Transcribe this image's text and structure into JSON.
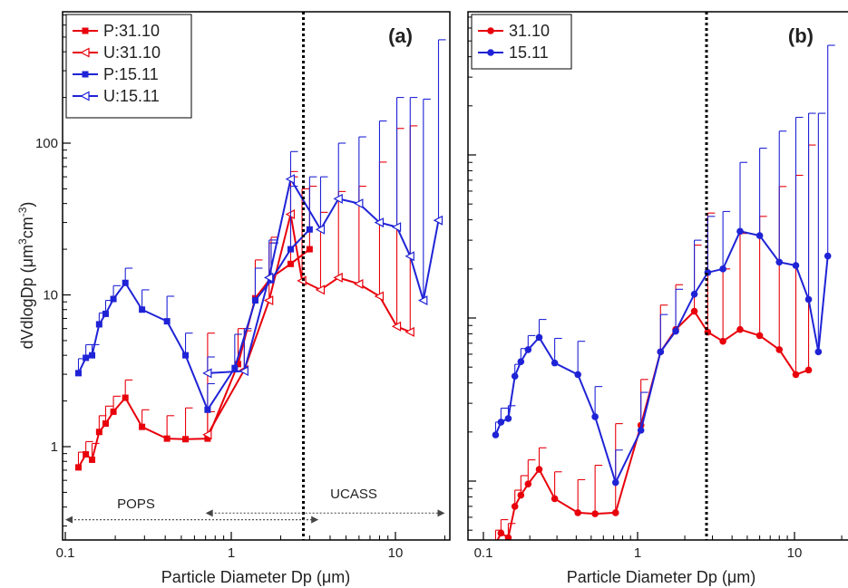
{
  "chart_data": [
    {
      "type": "line",
      "panel_label": "(a)",
      "xlabel": "Particle Diameter Dp (",
      "xlabel_unit": "μm",
      "xlabel_close": ")",
      "ylabel": "dVdlogDp (",
      "ylabel_unit": "μm",
      "ylabel_exp1": "3",
      "ylabel_cm": "cm",
      "ylabel_exp2": "-3",
      "ylabel_close": ")",
      "x_scale": "log",
      "y_scale": "log",
      "xlim": [
        0.1,
        20
      ],
      "ylim": [
        0.25,
        600
      ],
      "x_ticks": [
        {
          "value": 0.1,
          "label": "0.1"
        },
        {
          "value": 1,
          "label": "1"
        },
        {
          "value": 10,
          "label": "10"
        }
      ],
      "y_ticks": [
        {
          "value": 1,
          "label": "1"
        },
        {
          "value": 10,
          "label": "10"
        },
        {
          "value": 100,
          "label": "100"
        }
      ],
      "boundary_x": 2.75,
      "legend_position": "top-left",
      "annotations": [
        {
          "text": "POPS",
          "x": 0.28,
          "y": 0.38
        },
        {
          "text": "UCASS",
          "x": 5.2,
          "y": 0.42
        }
      ],
      "ranges": [
        {
          "from": 0.1,
          "to": 3.4,
          "y": 0.33
        },
        {
          "from": 0.7,
          "to": 20,
          "y": 0.365
        }
      ],
      "series": [
        {
          "name": "P:31.10",
          "color": "#e8000b",
          "marker": "square",
          "x": [
            0.12,
            0.133,
            0.145,
            0.16,
            0.175,
            0.195,
            0.23,
            0.29,
            0.41,
            0.53,
            0.72,
            1.1,
            1.4,
            1.75,
            2.3,
            3.0
          ],
          "y": [
            0.73,
            0.89,
            0.82,
            1.25,
            1.42,
            1.7,
            2.1,
            1.35,
            1.13,
            1.12,
            1.13,
            3.5,
            9.5,
            13,
            16,
            20
          ],
          "err": [
            0.92,
            1.08,
            1.05,
            1.6,
            1.85,
            2.15,
            2.75,
            1.75,
            1.6,
            1.8,
            5.6,
            6,
            17,
            24,
            65,
            52
          ]
        },
        {
          "name": "U:31.10",
          "color": "#e8000b",
          "marker": "tri-left",
          "x": [
            0.72,
            1.2,
            1.7,
            2.3,
            2.7,
            3.5,
            4.5,
            6.0,
            8.0,
            10.2,
            12.3
          ],
          "y": [
            1.2,
            3.2,
            9.2,
            34,
            12.4,
            10.8,
            13,
            11.8,
            9.8,
            6.2,
            5.7
          ],
          "err": [
            1.7,
            5.8,
            22,
            60,
            50,
            35,
            48,
            52,
            75,
            125,
            130
          ]
        },
        {
          "name": "P:15.11",
          "color": "#1f23d6",
          "marker": "square",
          "x": [
            0.12,
            0.133,
            0.145,
            0.16,
            0.175,
            0.195,
            0.23,
            0.29,
            0.41,
            0.53,
            0.72,
            1.05,
            1.4,
            1.75,
            2.3,
            3.0
          ],
          "y": [
            3.05,
            3.85,
            4.0,
            6.4,
            7.5,
            9.4,
            12,
            8.0,
            6.7,
            4.0,
            1.75,
            3.3,
            9.2,
            12.5,
            20,
            27
          ],
          "err": [
            3.8,
            4.7,
            4.7,
            7.6,
            9.2,
            11.5,
            15,
            10.8,
            9.8,
            5.6,
            2.6,
            5.5,
            15,
            22,
            52,
            60
          ]
        },
        {
          "name": "U:15.11",
          "color": "#1f23d6",
          "marker": "tri-left",
          "x": [
            0.72,
            1.2,
            1.7,
            2.3,
            3.5,
            4.5,
            6.0,
            8.0,
            10.2,
            12.3,
            14.8,
            18.3
          ],
          "y": [
            3.05,
            3.15,
            13,
            58,
            27,
            43,
            40,
            30,
            28,
            18,
            9.2,
            31
          ],
          "err": [
            3.9,
            6,
            23,
            88,
            60,
            100,
            110,
            140,
            200,
            200,
            195,
            480
          ]
        }
      ]
    },
    {
      "type": "line",
      "panel_label": "(b)",
      "xlabel": "Particle Diameter Dp (",
      "xlabel_unit": "μm",
      "xlabel_close": ")",
      "x_scale": "log",
      "y_scale": "log",
      "xlim": [
        0.1,
        20
      ],
      "ylim": [
        0.25,
        600
      ],
      "x_ticks": [
        {
          "value": 0.1,
          "label": "0.1"
        },
        {
          "value": 1,
          "label": "1"
        },
        {
          "value": 10,
          "label": "10"
        }
      ],
      "boundary_x": 2.75,
      "legend_position": "top-left",
      "series": [
        {
          "name": "31.10",
          "color": "#e8000b",
          "marker": "circle",
          "x": [
            0.12,
            0.13,
            0.145,
            0.16,
            0.175,
            0.195,
            0.23,
            0.29,
            0.41,
            0.53,
            0.72,
            1.05,
            1.4,
            1.75,
            2.3,
            2.8,
            3.5,
            4.5,
            6.0,
            8.0,
            10.2,
            12.3
          ],
          "y": [
            0.41,
            0.48,
            0.45,
            0.7,
            0.82,
            0.96,
            1.18,
            0.78,
            0.64,
            0.63,
            0.64,
            2.2,
            6.2,
            8.5,
            11,
            8.2,
            7.2,
            8.5,
            7.8,
            6.4,
            4.5,
            4.8
          ],
          "err": [
            0.5,
            0.58,
            0.55,
            0.88,
            1.08,
            1.35,
            1.6,
            1.14,
            1.02,
            1.25,
            2.25,
            4.2,
            12,
            16,
            28,
            44,
            20,
            33,
            42,
            64,
            75,
            115
          ]
        },
        {
          "name": "15.11",
          "color": "#1f23d6",
          "marker": "circle",
          "x": [
            0.12,
            0.13,
            0.145,
            0.16,
            0.175,
            0.195,
            0.23,
            0.29,
            0.41,
            0.53,
            0.72,
            1.05,
            1.4,
            1.75,
            2.3,
            2.8,
            3.5,
            4.5,
            6.0,
            8.0,
            10.2,
            12.3,
            14.2,
            16.3
          ],
          "y": [
            1.92,
            2.3,
            2.42,
            4.4,
            5.4,
            6.4,
            7.6,
            5.3,
            4.5,
            2.48,
            0.98,
            2.05,
            6.2,
            8.3,
            14,
            19,
            20,
            34,
            32,
            22,
            21,
            13,
            6.2,
            24
          ],
          "err": [
            2.3,
            2.8,
            2.9,
            5.2,
            6.5,
            7.8,
            9.8,
            7.5,
            7.2,
            3.8,
            1.55,
            3.5,
            10.5,
            15,
            30,
            42,
            45,
            90,
            110,
            140,
            170,
            180,
            180,
            470
          ]
        }
      ]
    }
  ]
}
